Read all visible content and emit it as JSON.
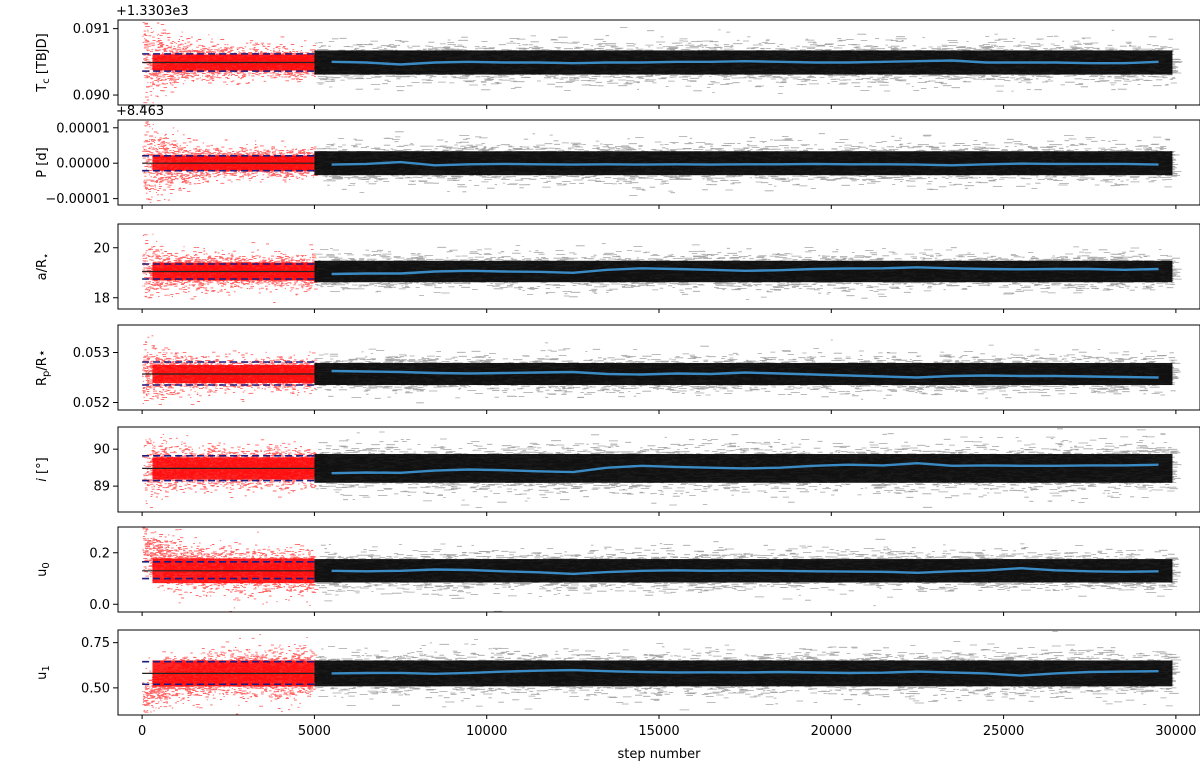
{
  "figure": {
    "xlabel": "step number",
    "x_range": [
      -700,
      30700
    ],
    "x_ticks": [
      0,
      5000,
      10000,
      15000,
      20000,
      25000,
      30000
    ],
    "burn_in_end": 5000,
    "colors": {
      "burn_in": "#ff0000",
      "chain": "#000000",
      "median": "#3a8ac4",
      "interval": "#1a1a80"
    }
  },
  "chart_data": [
    {
      "type": "line",
      "ylabel": "T",
      "ylabel_sub": "c",
      "ylabel_post": " [TBJD]",
      "offset": "+1.3303e3",
      "ylim": [
        0.08985,
        0.09113
      ],
      "yticks": [
        0.09,
        0.091
      ],
      "ytick_labels": [
        "0.090",
        "0.091"
      ],
      "burn_center": 0.09049,
      "burn_spread": 0.0001,
      "burn_start_spread": 0.0004,
      "interval_lines": [
        0.09036,
        0.09049,
        0.09062
      ],
      "chain_spread": 0.00014,
      "median_x": [
        5500,
        6500,
        7500,
        8500,
        9500,
        10500,
        11500,
        12500,
        13500,
        14500,
        15500,
        16500,
        17500,
        18500,
        19500,
        20500,
        21500,
        22500,
        23500,
        24500,
        25500,
        26500,
        27500,
        28500,
        29500
      ],
      "median_y": [
        0.0905,
        0.09049,
        0.09046,
        0.09049,
        0.0905,
        0.09049,
        0.09049,
        0.09048,
        0.09049,
        0.09049,
        0.0905,
        0.0905,
        0.09051,
        0.0905,
        0.09049,
        0.09049,
        0.0905,
        0.09051,
        0.09052,
        0.09049,
        0.09049,
        0.09049,
        0.09048,
        0.09048,
        0.0905
      ]
    },
    {
      "type": "line",
      "ylabel": "P [d]",
      "ylabel_sub": "",
      "ylabel_post": "",
      "offset": "+8.463",
      "ylim": [
        -1.18e-05,
        1.22e-05
      ],
      "yticks": [
        -1e-05,
        0.0,
        1e-05
      ],
      "ytick_labels": [
        "−0.00001",
        "0.00000",
        "0.00001"
      ],
      "burn_center": 0.0,
      "burn_spread": 1.8e-06,
      "burn_start_spread": 8e-06,
      "interval_lines": [
        -2.1e-06,
        0.0,
        2.1e-06
      ],
      "chain_spread": 2.6e-06,
      "median_x": [
        5500,
        6500,
        7500,
        8500,
        9500,
        10500,
        11500,
        12500,
        13500,
        14500,
        15500,
        16500,
        17500,
        18500,
        19500,
        20500,
        21500,
        22500,
        23500,
        24500,
        25500,
        26500,
        27500,
        28500,
        29500
      ],
      "median_y": [
        -4e-07,
        -2e-07,
        3e-07,
        -6e-07,
        -3e-07,
        -2e-07,
        -3e-07,
        -4e-07,
        -3e-07,
        -4e-07,
        -3e-07,
        -4e-07,
        -3e-07,
        -3e-07,
        -2e-07,
        -3e-07,
        -3e-07,
        -4e-07,
        -6e-07,
        -3e-07,
        -1e-07,
        -2e-07,
        -2e-07,
        -2e-07,
        -4e-07
      ]
    },
    {
      "type": "line",
      "ylabel": "a/R",
      "ylabel_sub": "⋆",
      "ylabel_post": "",
      "offset": "",
      "ylim": [
        17.55,
        20.95
      ],
      "yticks": [
        18,
        20
      ],
      "ytick_labels": [
        "18",
        "20"
      ],
      "burn_center": 19.05,
      "burn_spread": 0.3,
      "burn_start_spread": 0.6,
      "interval_lines": [
        18.75,
        19.05,
        19.35
      ],
      "chain_spread": 0.33,
      "median_x": [
        5500,
        6500,
        7500,
        8500,
        9500,
        10500,
        11500,
        12500,
        13500,
        14500,
        15500,
        16500,
        17500,
        18500,
        19500,
        20500,
        21500,
        22500,
        23500,
        24500,
        25500,
        26500,
        27500,
        28500,
        29500
      ],
      "median_y": [
        18.95,
        18.97,
        18.97,
        19.05,
        19.08,
        19.05,
        19.04,
        19.0,
        19.12,
        19.18,
        19.15,
        19.12,
        19.08,
        19.1,
        19.15,
        19.17,
        19.18,
        19.22,
        19.18,
        19.15,
        19.14,
        19.15,
        19.15,
        19.12,
        19.15
      ]
    },
    {
      "type": "line",
      "ylabel": "R",
      "ylabel_sub": "p",
      "ylabel_post": "/R⋆",
      "offset": "",
      "ylim": [
        0.05185,
        0.05355
      ],
      "yticks": [
        0.052,
        0.053
      ],
      "ytick_labels": [
        "0.052",
        "0.053"
      ],
      "burn_center": 0.05257,
      "burn_spread": 0.00015,
      "burn_start_spread": 0.0003,
      "interval_lines": [
        0.05235,
        0.05257,
        0.05281
      ],
      "chain_spread": 0.00017,
      "median_x": [
        5500,
        6500,
        7500,
        8500,
        9500,
        10500,
        11500,
        12500,
        13500,
        14500,
        15500,
        16500,
        17500,
        18500,
        19500,
        20500,
        21500,
        22500,
        23500,
        24500,
        25500,
        26500,
        27500,
        28500,
        29500
      ],
      "median_y": [
        0.05263,
        0.05262,
        0.05261,
        0.05259,
        0.05258,
        0.05259,
        0.0526,
        0.05261,
        0.05257,
        0.05256,
        0.05258,
        0.05257,
        0.0526,
        0.05258,
        0.05256,
        0.05254,
        0.05252,
        0.0525,
        0.05253,
        0.05254,
        0.05253,
        0.05253,
        0.05252,
        0.05251,
        0.0525
      ]
    },
    {
      "type": "line",
      "ylabel": "i",
      "ylabel_sub": "",
      "ylabel_post": " [°]",
      "offset": "",
      "ylim": [
        88.3,
        90.6
      ],
      "yticks": [
        89,
        90
      ],
      "ytick_labels": [
        "89",
        "90"
      ],
      "burn_center": 89.48,
      "burn_spread": 0.25,
      "burn_start_spread": 0.45,
      "interval_lines": [
        89.15,
        89.48,
        89.82
      ],
      "chain_spread": 0.3,
      "median_x": [
        5500,
        6500,
        7500,
        8500,
        9500,
        10500,
        11500,
        12500,
        13500,
        14500,
        15500,
        16500,
        17500,
        18500,
        19500,
        20500,
        21500,
        22500,
        23500,
        24500,
        25500,
        26500,
        27500,
        28500,
        29500
      ],
      "median_y": [
        89.35,
        89.37,
        89.36,
        89.42,
        89.45,
        89.43,
        89.4,
        89.38,
        89.5,
        89.55,
        89.52,
        89.5,
        89.48,
        89.5,
        89.55,
        89.58,
        89.56,
        89.62,
        89.55,
        89.56,
        89.55,
        89.55,
        89.56,
        89.56,
        89.58
      ]
    },
    {
      "type": "line",
      "ylabel": "u",
      "ylabel_sub": "0",
      "ylabel_post": "",
      "offset": "",
      "ylim": [
        -0.03,
        0.3
      ],
      "yticks": [
        0.0,
        0.2
      ],
      "ytick_labels": [
        "0.0",
        "0.2"
      ],
      "burn_center": 0.13,
      "burn_spread": 0.04,
      "burn_start_center": 0.22,
      "burn_start_spread": 0.06,
      "interval_lines": [
        0.1,
        0.13,
        0.165
      ],
      "chain_spread": 0.035,
      "median_x": [
        5500,
        6500,
        7500,
        8500,
        9500,
        10500,
        11500,
        12500,
        13500,
        14500,
        15500,
        16500,
        17500,
        18500,
        19500,
        20500,
        21500,
        22500,
        23500,
        24500,
        25500,
        26500,
        27500,
        28500,
        29500
      ],
      "median_y": [
        0.13,
        0.128,
        0.13,
        0.135,
        0.133,
        0.128,
        0.124,
        0.118,
        0.125,
        0.13,
        0.132,
        0.13,
        0.131,
        0.13,
        0.128,
        0.127,
        0.126,
        0.122,
        0.128,
        0.132,
        0.14,
        0.132,
        0.128,
        0.126,
        0.128
      ]
    },
    {
      "type": "line",
      "ylabel": "u",
      "ylabel_sub": "1",
      "ylabel_post": "",
      "offset": "",
      "ylim": [
        0.35,
        0.82
      ],
      "yticks": [
        0.5,
        0.75
      ],
      "ytick_labels": [
        "0.50",
        "0.75"
      ],
      "burn_center": 0.58,
      "burn_spread": 0.06,
      "burn_start_center": 0.44,
      "burn_start_spread": 0.05,
      "interval_lines": [
        0.52,
        0.58,
        0.645
      ],
      "chain_spread": 0.055,
      "median_x": [
        5500,
        6500,
        7500,
        8500,
        9500,
        10500,
        11500,
        12500,
        13500,
        14500,
        15500,
        16500,
        17500,
        18500,
        19500,
        20500,
        21500,
        22500,
        23500,
        24500,
        25500,
        26500,
        27500,
        28500,
        29500
      ],
      "median_y": [
        0.58,
        0.582,
        0.583,
        0.578,
        0.583,
        0.59,
        0.595,
        0.598,
        0.592,
        0.588,
        0.585,
        0.586,
        0.585,
        0.588,
        0.585,
        0.582,
        0.584,
        0.59,
        0.585,
        0.58,
        0.568,
        0.58,
        0.588,
        0.59,
        0.592
      ]
    }
  ]
}
